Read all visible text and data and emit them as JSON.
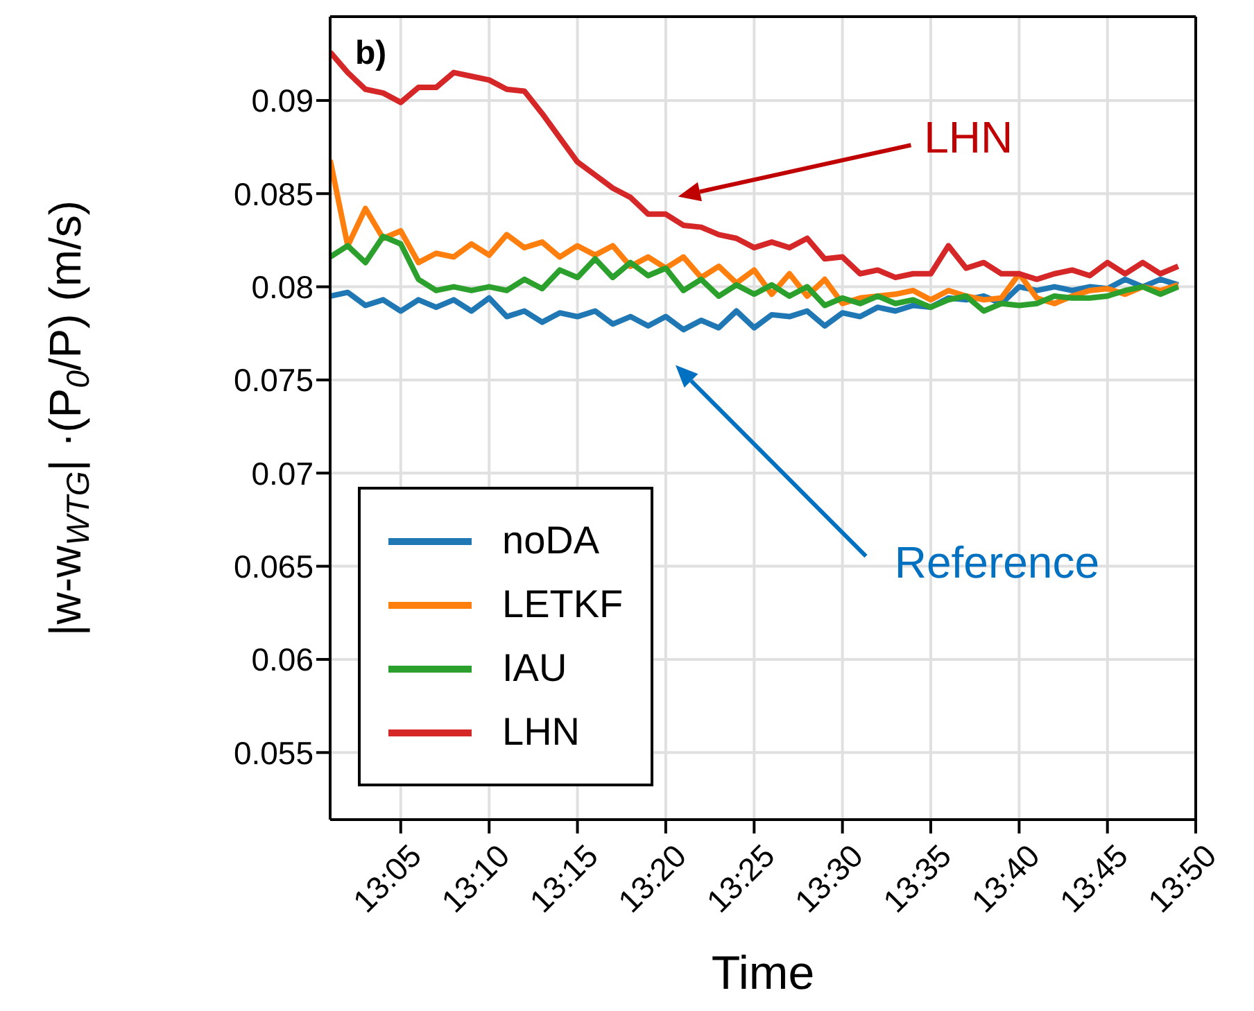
{
  "chart_data": {
    "type": "line",
    "xlabel": "Time",
    "ylabel": "|w-w$_{WTG}$| ·(P$_{0}$/P) (m/s)",
    "x": [
      13.0167,
      13.0333,
      13.05,
      13.0667,
      13.0833,
      13.1,
      13.1167,
      13.1333,
      13.15,
      13.1667,
      13.1833,
      13.2,
      13.2167,
      13.2333,
      13.25,
      13.2667,
      13.2833,
      13.3,
      13.3167,
      13.3333,
      13.35,
      13.3667,
      13.3833,
      13.4,
      13.4167,
      13.4333,
      13.45,
      13.4667,
      13.4833,
      13.5,
      13.5167,
      13.5333,
      13.55,
      13.5667,
      13.5833,
      13.6,
      13.6167,
      13.6333,
      13.65,
      13.6667,
      13.6833,
      13.7,
      13.7167,
      13.7333,
      13.75,
      13.7667,
      13.7833,
      13.8,
      13.8167
    ],
    "series": [
      {
        "name": "noDA",
        "color": "#1f77b4",
        "values": [
          0.0795,
          0.0797,
          0.079,
          0.0793,
          0.0787,
          0.0793,
          0.0789,
          0.0793,
          0.0787,
          0.0794,
          0.0784,
          0.0787,
          0.0781,
          0.0786,
          0.0784,
          0.0787,
          0.078,
          0.0784,
          0.0779,
          0.0784,
          0.0777,
          0.0782,
          0.0778,
          0.0787,
          0.0778,
          0.0785,
          0.0784,
          0.0787,
          0.0779,
          0.0786,
          0.0784,
          0.0789,
          0.0787,
          0.079,
          0.0789,
          0.0794,
          0.0793,
          0.0795,
          0.0791,
          0.08,
          0.0798,
          0.08,
          0.0798,
          0.08,
          0.0799,
          0.0804,
          0.08,
          0.0804,
          0.0801
        ]
      },
      {
        "name": "LETKF",
        "color": "#ff7f0e",
        "values": [
          0.0868,
          0.0822,
          0.0842,
          0.0826,
          0.083,
          0.0813,
          0.0818,
          0.0816,
          0.0823,
          0.0817,
          0.0828,
          0.0821,
          0.0824,
          0.0816,
          0.0822,
          0.0817,
          0.0822,
          0.0811,
          0.0816,
          0.081,
          0.0816,
          0.0805,
          0.0811,
          0.0802,
          0.0809,
          0.0796,
          0.0807,
          0.0795,
          0.0804,
          0.0791,
          0.0794,
          0.0795,
          0.0796,
          0.0798,
          0.0793,
          0.0798,
          0.0795,
          0.0793,
          0.0794,
          0.0807,
          0.0794,
          0.0791,
          0.0795,
          0.0798,
          0.0799,
          0.0796,
          0.08,
          0.0798,
          0.0801
        ]
      },
      {
        "name": "IAU",
        "color": "#2ca02c",
        "values": [
          0.0816,
          0.0822,
          0.0813,
          0.0827,
          0.0823,
          0.0804,
          0.0798,
          0.08,
          0.0798,
          0.08,
          0.0798,
          0.0804,
          0.0799,
          0.0809,
          0.0805,
          0.0815,
          0.0805,
          0.0813,
          0.0806,
          0.081,
          0.0798,
          0.0804,
          0.0795,
          0.0801,
          0.0796,
          0.0801,
          0.0795,
          0.08,
          0.079,
          0.0794,
          0.0791,
          0.0795,
          0.0791,
          0.0793,
          0.0789,
          0.0793,
          0.0795,
          0.0787,
          0.0791,
          0.079,
          0.0791,
          0.0795,
          0.0794,
          0.0794,
          0.0795,
          0.0798,
          0.08,
          0.0796,
          0.08
        ]
      },
      {
        "name": "LHN",
        "color": "#d62728",
        "values": [
          0.0926,
          0.0915,
          0.0906,
          0.0904,
          0.0899,
          0.0907,
          0.0907,
          0.0915,
          0.0913,
          0.0911,
          0.0906,
          0.0905,
          0.0893,
          0.088,
          0.0867,
          0.086,
          0.0853,
          0.0848,
          0.0839,
          0.0839,
          0.0833,
          0.0832,
          0.0828,
          0.0826,
          0.0821,
          0.0824,
          0.0821,
          0.0826,
          0.0815,
          0.0816,
          0.0807,
          0.0809,
          0.0805,
          0.0807,
          0.0807,
          0.0822,
          0.081,
          0.0813,
          0.0807,
          0.0807,
          0.0804,
          0.0807,
          0.0809,
          0.0806,
          0.0813,
          0.0807,
          0.0813,
          0.0807,
          0.0811
        ]
      }
    ],
    "xlim": [
      13.0167,
      13.8333
    ],
    "xticks": [
      {
        "value": 13.0833,
        "label": "13:05"
      },
      {
        "value": 13.1667,
        "label": "13:10"
      },
      {
        "value": 13.25,
        "label": "13:15"
      },
      {
        "value": 13.3333,
        "label": "13:20"
      },
      {
        "value": 13.4167,
        "label": "13:25"
      },
      {
        "value": 13.5,
        "label": "13:30"
      },
      {
        "value": 13.5833,
        "label": "13:35"
      },
      {
        "value": 13.6667,
        "label": "13:40"
      },
      {
        "value": 13.75,
        "label": "13:45"
      },
      {
        "value": 13.8333,
        "label": "13:50"
      }
    ],
    "ylim": [
      0.0514,
      0.0945
    ],
    "yticks": [
      0.055,
      0.06,
      0.065,
      0.07,
      0.075,
      0.08,
      0.085,
      0.09
    ],
    "grid": true,
    "legend": "bottom left",
    "marker": "none",
    "line_style": "solid",
    "annotations": [
      "b)",
      "LHN",
      "Reference"
    ]
  }
}
